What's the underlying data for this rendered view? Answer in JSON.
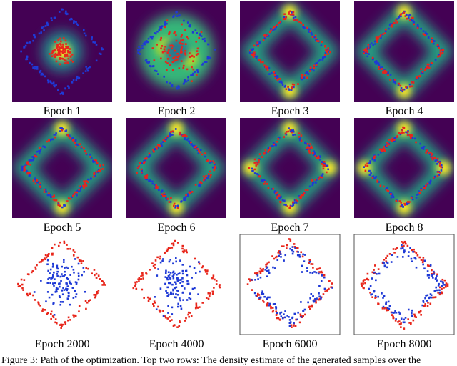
{
  "panels": [
    {
      "caption": "Epoch 1"
    },
    {
      "caption": "Epoch 2"
    },
    {
      "caption": "Epoch 3"
    },
    {
      "caption": "Epoch 4"
    },
    {
      "caption": "Epoch 5"
    },
    {
      "caption": "Epoch 6"
    },
    {
      "caption": "Epoch 7"
    },
    {
      "caption": "Epoch 8"
    },
    {
      "caption": "Epoch 2000"
    },
    {
      "caption": "Epoch 4000"
    },
    {
      "caption": "Epoch 6000"
    },
    {
      "caption": "Epoch 8000"
    }
  ],
  "figure_caption": "Figure 3: Path of the optimization. Top two rows: The density estimate of the generated samples over the"
}
